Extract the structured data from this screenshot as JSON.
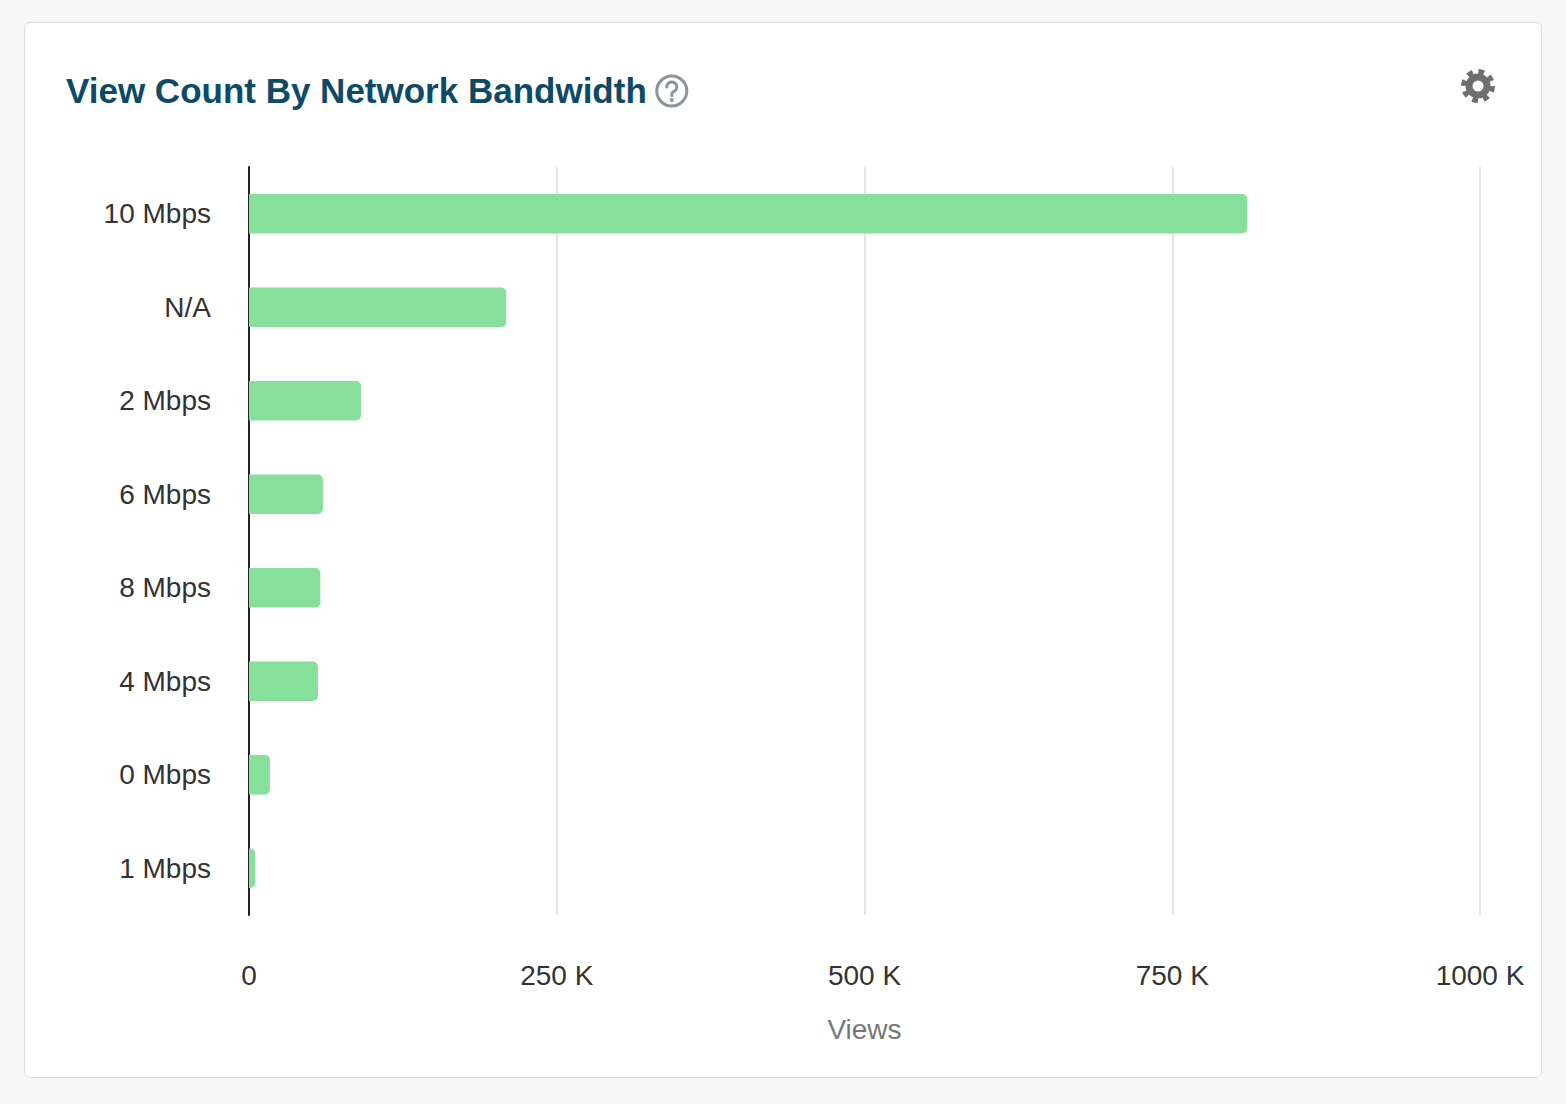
{
  "chart_data": {
    "type": "bar",
    "title": "View Count By Network Bandwidth",
    "orientation": "horizontal",
    "categories": [
      "10 Mbps",
      "N/A",
      "2 Mbps",
      "6 Mbps",
      "8 Mbps",
      "4 Mbps",
      "0 Mbps",
      "1 Mbps"
    ],
    "values": [
      811000,
      209000,
      91000,
      60000,
      58000,
      56000,
      17000,
      5000
    ],
    "color": "#86df9b",
    "x_label": "Views",
    "xlim": [
      0,
      1000000
    ],
    "xticks": [
      0,
      {
        "value": 250000,
        "label": "250 K"
      },
      {
        "value": 500000,
        "label": "500 K"
      },
      {
        "value": 750000,
        "label": "750 K"
      },
      {
        "value": 1000000,
        "label": "1000 K"
      }
    ],
    "grid": true
  }
}
